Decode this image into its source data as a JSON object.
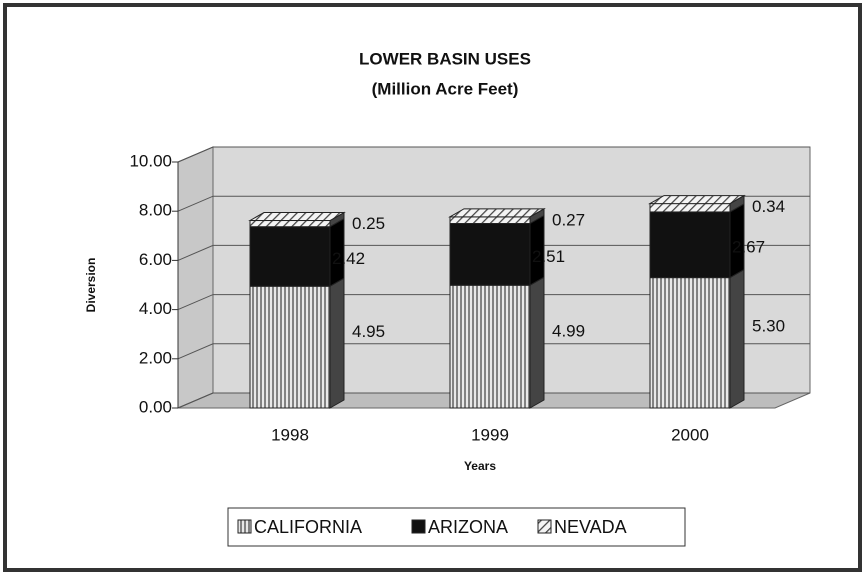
{
  "chart_data": {
    "type": "bar3d_stacked",
    "title": "LOWER BASIN USES",
    "subtitle": "(Million Acre Feet)",
    "y_label": "Diversion",
    "x_label": "Years",
    "categories": [
      "1998",
      "1999",
      "2000"
    ],
    "series": [
      {
        "name": "CALIFORNIA",
        "color": "#555555",
        "pattern": "vertical",
        "values": [
          4.95,
          4.99,
          5.3
        ],
        "value_labels": [
          "4.95",
          "4.99",
          "5.30"
        ]
      },
      {
        "name": "ARIZONA",
        "color": "#111111",
        "pattern": "solid",
        "values": [
          2.42,
          2.51,
          2.67
        ],
        "value_labels": [
          "2.42",
          "2.51",
          "2.67"
        ]
      },
      {
        "name": "NEVADA",
        "color": "#444444",
        "pattern": "diagonal",
        "values": [
          0.25,
          0.27,
          0.34
        ],
        "value_labels": [
          "0.25",
          "0.27",
          "0.34"
        ]
      }
    ],
    "ylim": [
      0,
      10
    ],
    "yticks": [
      {
        "value": 0,
        "label": "0.00"
      },
      {
        "value": 2,
        "label": "2.00"
      },
      {
        "value": 4,
        "label": "4.00"
      },
      {
        "value": 6,
        "label": "6.00"
      },
      {
        "value": 8,
        "label": "8.00"
      },
      {
        "value": 10,
        "label": "10.00"
      }
    ],
    "grid": true
  }
}
